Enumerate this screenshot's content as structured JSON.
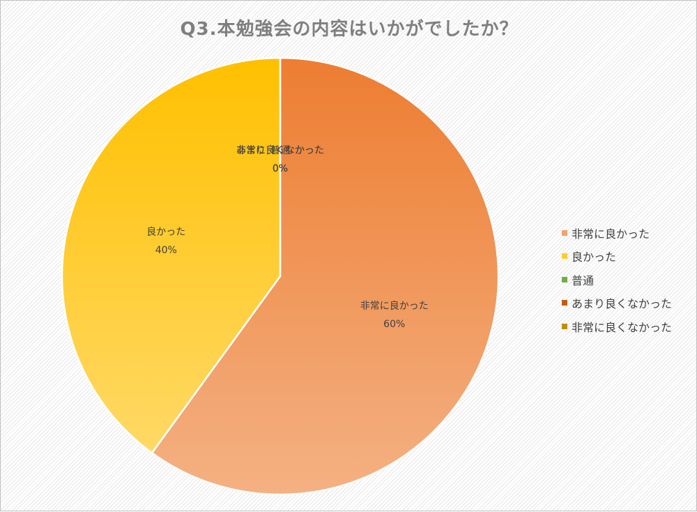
{
  "chart_data": {
    "type": "pie",
    "title": "Q3.本勉強会の内容はいかがでしたか？",
    "categories": [
      "非常に良かった",
      "良かった",
      "普通",
      "あまり良くなかった",
      "非常に良くなかった"
    ],
    "values": [
      60,
      40,
      0,
      0,
      0
    ],
    "value_labels": [
      "60%",
      "40%",
      "0%",
      "0%",
      "0%"
    ],
    "colors": [
      "#f0a36a",
      "#ffcc2e",
      "#70ad47",
      "#c55a11",
      "#bf9000"
    ],
    "legend_position": "right"
  }
}
